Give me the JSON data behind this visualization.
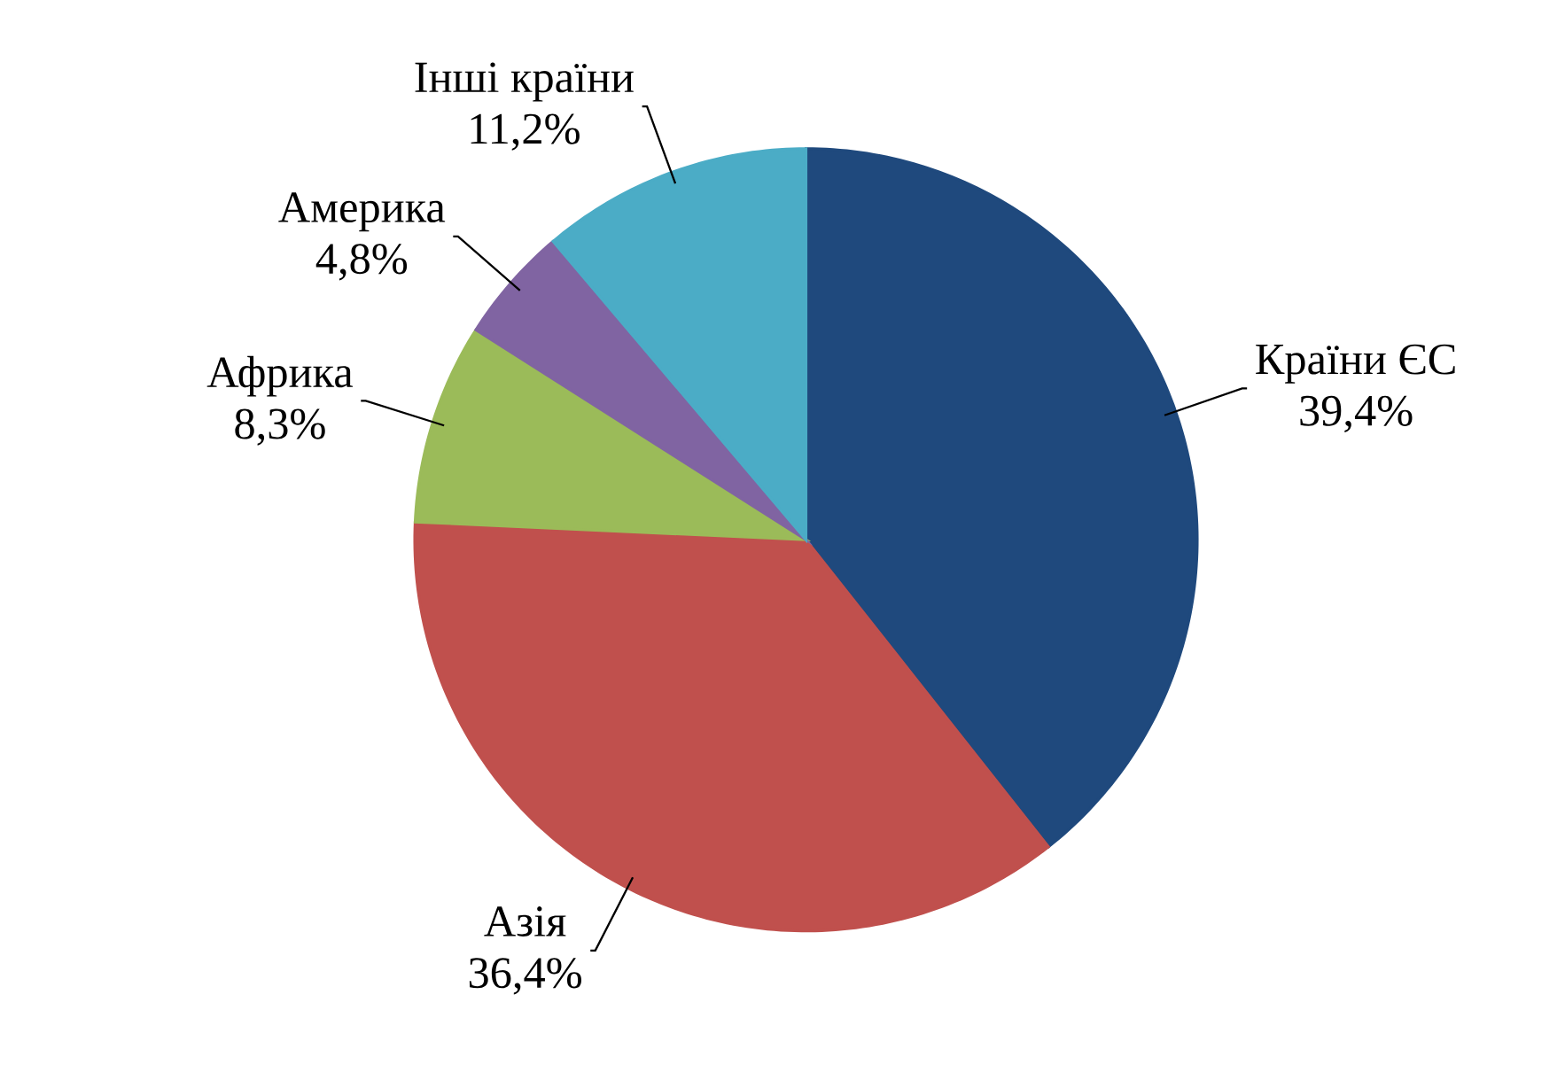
{
  "chart_data": {
    "type": "pie",
    "categories": [
      "Країни ЄС",
      "Азія",
      "Африка",
      "Америка",
      "Інші країни"
    ],
    "values": [
      39.4,
      36.4,
      8.3,
      4.8,
      11.2
    ],
    "value_labels": [
      "39,4%",
      "36,4%",
      "8,3%",
      "4,8%",
      "11,2%"
    ],
    "colors": [
      "#1f497d",
      "#c0504d",
      "#9bbb59",
      "#8064a2",
      "#4bacc6"
    ]
  }
}
